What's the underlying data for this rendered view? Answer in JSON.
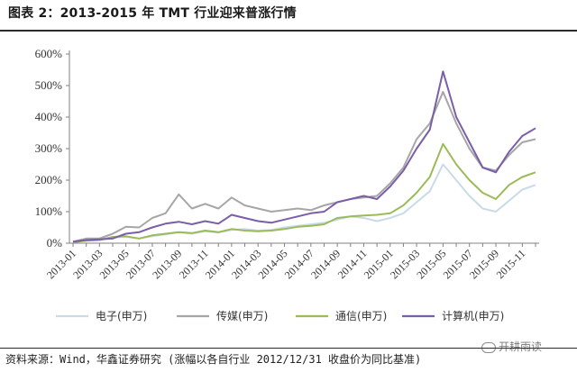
{
  "header": {
    "title": "图表 2：2013-2015 年 TMT 行业迎来普涨行情"
  },
  "footer": {
    "source": "资料来源：Wind，华鑫证券研究 (涨幅以各自行业 2012/12/31 收盘价为同比基准)",
    "watermark": "开耕雨读"
  },
  "colors": {
    "electronics": "#c9dbe8",
    "media": "#a6a6a6",
    "telecom": "#9bbb59",
    "computer": "#7a5ea8",
    "axis": "#808080"
  },
  "chart_data": {
    "type": "line",
    "ylim": [
      0,
      600
    ],
    "yticks": [
      "0%",
      "100%",
      "200%",
      "300%",
      "400%",
      "500%",
      "600%"
    ],
    "ytick_values": [
      0,
      100,
      200,
      300,
      400,
      500,
      600
    ],
    "grid": false,
    "legend_position": "bottom",
    "xticks": [
      "2013-01",
      "2013-03",
      "2013-05",
      "2013-07",
      "2013-09",
      "2013-11",
      "2014-01",
      "2014-03",
      "2014-05",
      "2014-07",
      "2014-09",
      "2014-11",
      "2015-01",
      "2015-03",
      "2015-05",
      "2015-07",
      "2015-09",
      "2015-11"
    ],
    "x": [
      "2013-01",
      "2013-02",
      "2013-03",
      "2013-04",
      "2013-05",
      "2013-06",
      "2013-07",
      "2013-08",
      "2013-09",
      "2013-10",
      "2013-11",
      "2013-12",
      "2014-01",
      "2014-02",
      "2014-03",
      "2014-04",
      "2014-05",
      "2014-06",
      "2014-07",
      "2014-08",
      "2014-09",
      "2014-10",
      "2014-11",
      "2014-12",
      "2015-01",
      "2015-02",
      "2015-03",
      "2015-04",
      "2015-05",
      "2015-06",
      "2015-07",
      "2015-08",
      "2015-09",
      "2015-10",
      "2015-11",
      "2015-12"
    ],
    "series": [
      {
        "name": "电子(申万)",
        "color_key": "electronics",
        "values": [
          5,
          8,
          10,
          18,
          20,
          15,
          22,
          28,
          35,
          30,
          38,
          34,
          42,
          45,
          40,
          42,
          50,
          55,
          60,
          65,
          75,
          85,
          80,
          70,
          80,
          95,
          130,
          165,
          250,
          200,
          150,
          110,
          100,
          135,
          170,
          185
        ]
      },
      {
        "name": "传媒(申万)",
        "color_key": "media",
        "values": [
          5,
          15,
          15,
          30,
          52,
          50,
          80,
          95,
          155,
          110,
          125,
          110,
          145,
          120,
          110,
          100,
          105,
          110,
          105,
          120,
          130,
          140,
          145,
          150,
          190,
          240,
          330,
          380,
          480,
          380,
          300,
          240,
          230,
          280,
          320,
          330
        ]
      },
      {
        "name": "通信(申万)",
        "color_key": "telecom",
        "values": [
          3,
          8,
          10,
          20,
          22,
          15,
          25,
          30,
          35,
          32,
          40,
          35,
          45,
          40,
          38,
          40,
          45,
          52,
          55,
          60,
          80,
          85,
          88,
          90,
          95,
          120,
          160,
          210,
          315,
          250,
          200,
          160,
          140,
          185,
          210,
          225
        ]
      },
      {
        "name": "计算机(申万)",
        "color_key": "computer",
        "values": [
          5,
          10,
          12,
          15,
          30,
          35,
          50,
          62,
          68,
          60,
          70,
          62,
          90,
          80,
          70,
          65,
          75,
          85,
          95,
          100,
          130,
          140,
          150,
          140,
          180,
          230,
          300,
          360,
          545,
          400,
          320,
          240,
          225,
          290,
          340,
          365
        ]
      }
    ]
  }
}
